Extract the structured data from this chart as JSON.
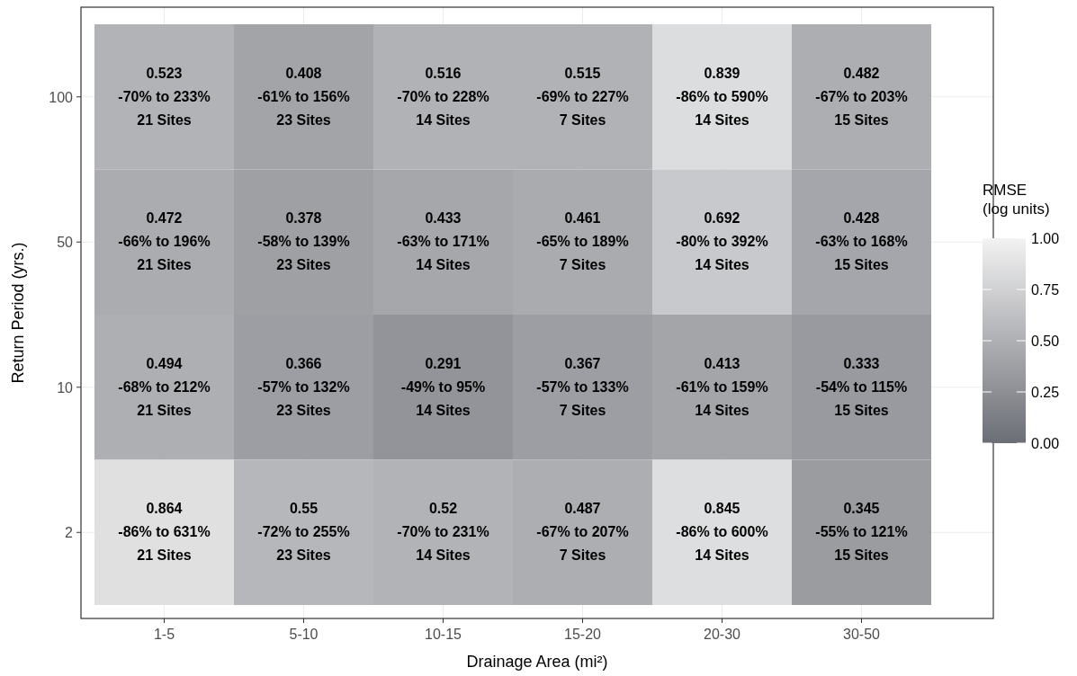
{
  "chart_data": {
    "type": "heatmap",
    "xlabel": "Drainage Area (mi²)",
    "ylabel": "Return Period (yrs.)",
    "clabel": "RMSE\n(log units)",
    "categories": [
      "1-5",
      "5-10",
      "10-15",
      "15-20",
      "20-30",
      "30-50"
    ],
    "y_categories": [
      "100",
      "50",
      "10",
      "2"
    ],
    "cells": [
      [
        0.523,
        0.408,
        0.516,
        0.515,
        0.839,
        0.482
      ],
      [
        0.472,
        0.378,
        0.433,
        0.461,
        0.692,
        0.428
      ],
      [
        0.494,
        0.366,
        0.291,
        0.367,
        0.413,
        0.333
      ],
      [
        0.864,
        0.55,
        0.52,
        0.487,
        0.845,
        0.345
      ]
    ],
    "cell_labels": [
      [
        "0.523\n-70% to 233%\n21 Sites",
        "0.408\n-61% to 156%\n23 Sites",
        "0.516\n-70% to 228%\n14 Sites",
        "0.515\n-69% to 227%\n7 Sites",
        "0.839\n-86% to 590%\n14 Sites",
        "0.482\n-67% to 203%\n15 Sites"
      ],
      [
        "0.472\n-66% to 196%\n21 Sites",
        "0.378\n-58% to 139%\n23 Sites",
        "0.433\n-63% to 171%\n14 Sites",
        "0.461\n-65% to 189%\n7 Sites",
        "0.692\n-80% to 392%\n14 Sites",
        "0.428\n-63% to 168%\n15 Sites"
      ],
      [
        "0.494\n-68% to 212%\n21 Sites",
        "0.366\n-57% to 132%\n23 Sites",
        "0.291\n-49% to 95%\n14 Sites",
        "0.367\n-57% to 133%\n7 Sites",
        "0.413\n-61% to 159%\n14 Sites",
        "0.333\n-54% to 115%\n15 Sites"
      ],
      [
        "0.864\n-86% to 631%\n21 Sites",
        "0.55\n-72% to 255%\n23 Sites",
        "0.52\n-70% to 231%\n14 Sites",
        "0.487\n-67% to 207%\n7 Sites",
        "0.845\n-86% to 600%\n14 Sites",
        "0.345\n-55% to 121%\n15 Sites"
      ]
    ],
    "clim": [
      0,
      1
    ],
    "cticks": [
      {
        "value": 0,
        "label": "0.00"
      },
      {
        "value": 0.25,
        "label": "0.25"
      },
      {
        "value": 0.5,
        "label": "0.50"
      },
      {
        "value": 0.75,
        "label": "0.75"
      },
      {
        "value": 1,
        "label": "1.00"
      }
    ],
    "grid": true
  }
}
